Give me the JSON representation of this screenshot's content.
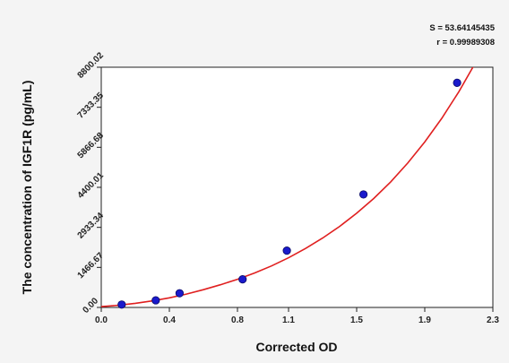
{
  "chart_data": {
    "type": "scatter",
    "xlabel": "Corrected OD",
    "ylabel": "The concentration of IGF1R (pg/mL)",
    "x_ticks": [
      "0.0",
      "0.4",
      "0.8",
      "1.1",
      "1.5",
      "1.9",
      "2.3"
    ],
    "y_ticks": [
      "0.00",
      "1466.67",
      "2933.34",
      "4400.01",
      "5866.68",
      "7333.35",
      "8800.02"
    ],
    "xlim": [
      0,
      2.3
    ],
    "ylim": [
      0,
      8800.02
    ],
    "points": [
      {
        "x": 0.12,
        "y": 105
      },
      {
        "x": 0.32,
        "y": 260
      },
      {
        "x": 0.46,
        "y": 520
      },
      {
        "x": 0.83,
        "y": 1030
      },
      {
        "x": 1.09,
        "y": 2080
      },
      {
        "x": 1.54,
        "y": 4140
      },
      {
        "x": 2.09,
        "y": 8230
      }
    ],
    "fit_curve": {
      "color": "#e02020",
      "samples": [
        [
          0.0,
          30
        ],
        [
          0.1,
          80
        ],
        [
          0.2,
          150
        ],
        [
          0.3,
          240
        ],
        [
          0.4,
          350
        ],
        [
          0.5,
          490
        ],
        [
          0.6,
          650
        ],
        [
          0.7,
          830
        ],
        [
          0.8,
          1030
        ],
        [
          0.9,
          1260
        ],
        [
          1.0,
          1520
        ],
        [
          1.1,
          1820
        ],
        [
          1.2,
          2160
        ],
        [
          1.3,
          2540
        ],
        [
          1.4,
          2970
        ],
        [
          1.5,
          3450
        ],
        [
          1.6,
          3990
        ],
        [
          1.7,
          4600
        ],
        [
          1.8,
          5290
        ],
        [
          1.9,
          6060
        ],
        [
          2.0,
          6930
        ],
        [
          2.1,
          7900
        ],
        [
          2.2,
          8990
        ]
      ]
    },
    "point_color": "#1a1acc",
    "grid": false,
    "stats": {
      "s_label": "S = 53.64145435",
      "r_label": "r = 0.99989308"
    }
  }
}
